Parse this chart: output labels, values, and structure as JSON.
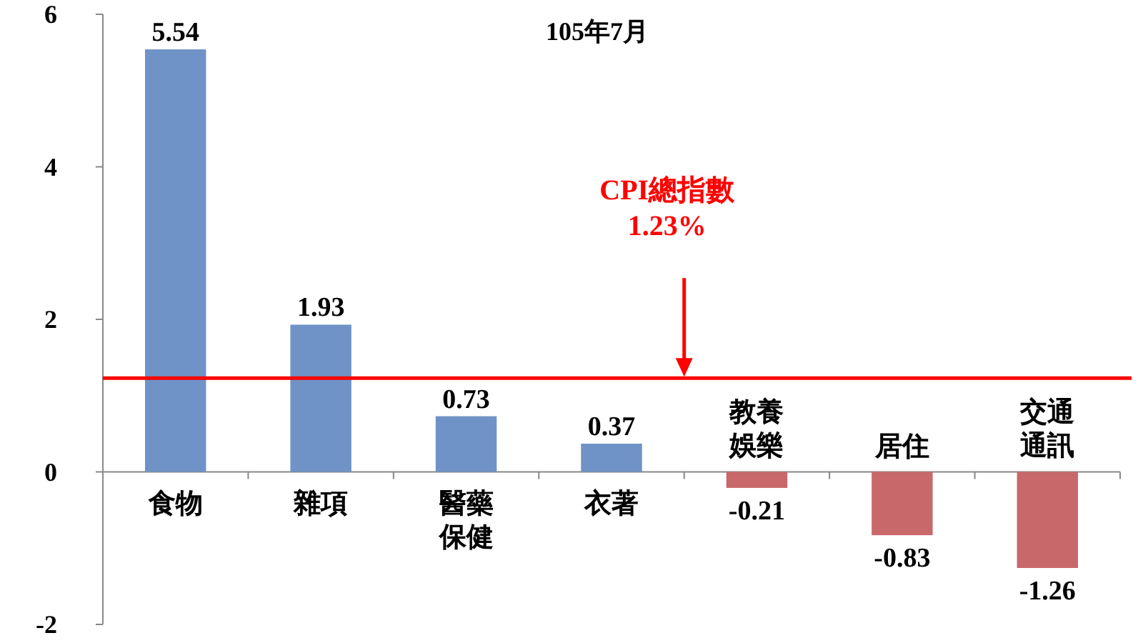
{
  "chart_data": {
    "type": "bar",
    "title": "105年7月",
    "categories": [
      "食物",
      "雜項",
      "醫藥保健",
      "衣著",
      "教養娛樂",
      "居住",
      "交通通訊"
    ],
    "values": [
      5.54,
      1.93,
      0.73,
      0.37,
      -0.21,
      -0.83,
      -1.26
    ],
    "colors": [
      "#6f93c6",
      "#6f93c6",
      "#6f93c6",
      "#6f93c6",
      "#c9686a",
      "#c9686a",
      "#c9686a"
    ],
    "ylim": [
      -2,
      6
    ],
    "yticks": [
      -2,
      0,
      2,
      4,
      6
    ],
    "grid": false,
    "data_labels": true,
    "ref_lines": [
      {
        "axis": "y",
        "value": 1.23,
        "label": "CPI總指數\n1.23%",
        "color": "#ff0000",
        "line_style": "solid"
      }
    ]
  }
}
